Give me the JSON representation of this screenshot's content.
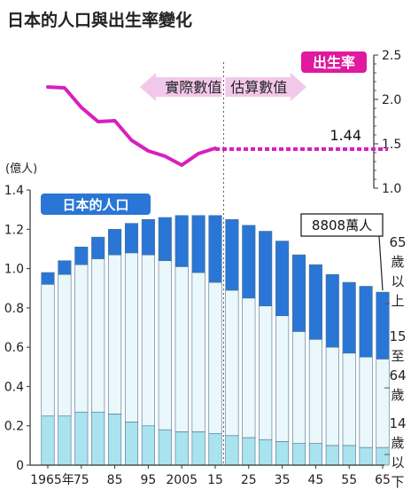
{
  "title": "日本的人口與出生率變化",
  "chart_data": [
    {
      "type": "line",
      "name": "出生率",
      "legend_color": "#e0199e",
      "line_color": "#d81fbf",
      "yticks": [
        "1.0",
        "1.5",
        "2.0",
        "2.5"
      ],
      "ylim": [
        1.0,
        2.5
      ],
      "x": [
        1965,
        1970,
        1975,
        1980,
        1985,
        1990,
        1995,
        2000,
        2005,
        2010,
        2015
      ],
      "values": [
        2.14,
        2.13,
        1.91,
        1.75,
        1.76,
        1.54,
        1.42,
        1.36,
        1.26,
        1.39,
        1.45
      ],
      "projection_x": [
        2015,
        2065
      ],
      "projection_values": [
        1.44,
        1.44
      ],
      "end_label": "1.44",
      "actual_label": "實際數值",
      "estimate_label": "估算數值"
    },
    {
      "type": "bar",
      "stacked": true,
      "legend_label": "日本的人口",
      "ylabel": "(億人)",
      "yticks": [
        "0",
        "0.2",
        "0.4",
        "0.6",
        "0.8",
        "1.0",
        "1.2",
        "1.4"
      ],
      "ylim": [
        0,
        1.4
      ],
      "x_years": [
        1965,
        1970,
        1975,
        1980,
        1985,
        1990,
        1995,
        2000,
        2005,
        2010,
        2015,
        2020,
        2025,
        2030,
        2035,
        2040,
        2045,
        2050,
        2055,
        2060,
        2065
      ],
      "x_tick_labels": [
        "1965年",
        "75",
        "85",
        "95",
        "2005",
        "15",
        "25",
        "35",
        "45",
        "55",
        "65"
      ],
      "series": [
        {
          "name": "14歲以下",
          "color": "#a8e3ee",
          "values": [
            0.25,
            0.25,
            0.27,
            0.27,
            0.26,
            0.22,
            0.2,
            0.18,
            0.17,
            0.17,
            0.16,
            0.15,
            0.14,
            0.13,
            0.12,
            0.11,
            0.11,
            0.1,
            0.1,
            0.09,
            0.09
          ]
        },
        {
          "name": "15至64歲",
          "color": "#eaf7fb",
          "values": [
            0.67,
            0.72,
            0.75,
            0.78,
            0.81,
            0.86,
            0.87,
            0.86,
            0.84,
            0.81,
            0.77,
            0.74,
            0.71,
            0.68,
            0.64,
            0.57,
            0.53,
            0.5,
            0.47,
            0.46,
            0.45
          ]
        },
        {
          "name": "65歲以上",
          "color": "#2a76d6",
          "values": [
            0.06,
            0.07,
            0.09,
            0.11,
            0.13,
            0.15,
            0.18,
            0.22,
            0.26,
            0.29,
            0.34,
            0.36,
            0.37,
            0.38,
            0.38,
            0.39,
            0.38,
            0.37,
            0.36,
            0.36,
            0.34
          ]
        }
      ],
      "side_labels": {
        "senior": [
          "65",
          "歲",
          "以",
          "上"
        ],
        "working": [
          "15",
          "至",
          "64",
          "歲"
        ],
        "child": [
          "14",
          "歲",
          "以",
          "下"
        ]
      },
      "end_callout": "8808萬人"
    }
  ]
}
